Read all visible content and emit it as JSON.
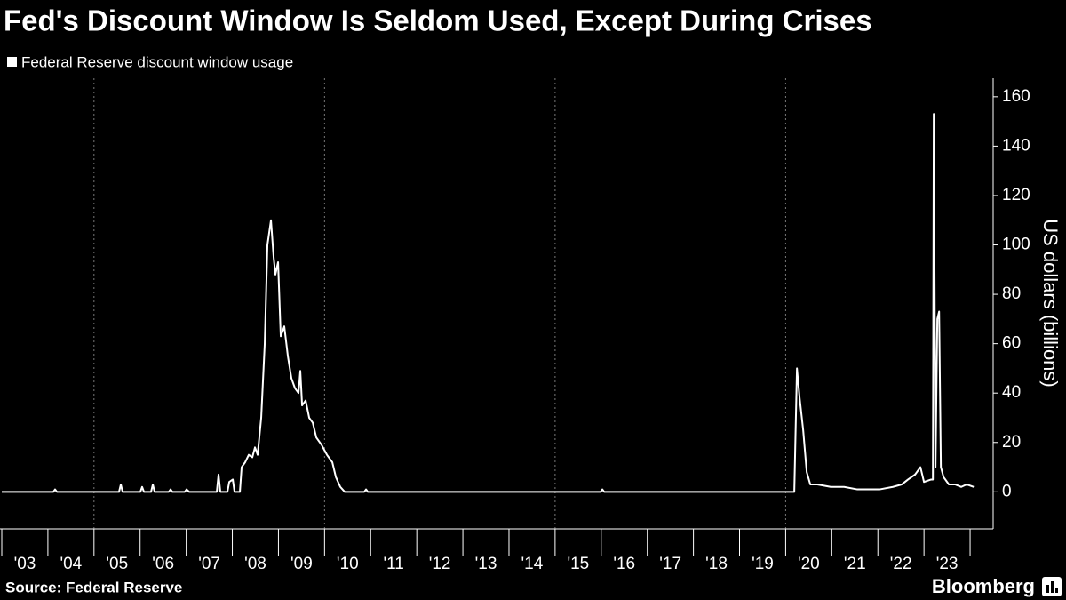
{
  "chart_data": {
    "type": "line",
    "title": "Fed's Discount Window Is Seldom Used, Except During Crises",
    "y_label": "US dollars (billions)",
    "source": "Source: Federal Reserve",
    "brand": "Bloomberg",
    "x": [
      2003.0,
      2004.118,
      2004.156,
      2004.195,
      2005.543,
      2005.582,
      2005.62,
      2006.006,
      2006.044,
      2006.083,
      2006.237,
      2006.276,
      2006.314,
      2006.622,
      2006.661,
      2006.699,
      2006.969,
      2007.008,
      2007.066,
      2007.663,
      2007.701,
      2007.74,
      2007.894,
      2007.933,
      2008.01,
      2008.048,
      2008.164,
      2008.202,
      2008.279,
      2008.356,
      2008.434,
      2008.491,
      2008.549,
      2008.626,
      2008.703,
      2008.761,
      2008.838,
      2008.896,
      2008.934,
      2008.992,
      2009.05,
      2009.127,
      2009.204,
      2009.281,
      2009.358,
      2009.435,
      2009.474,
      2009.513,
      2009.59,
      2009.667,
      2009.744,
      2009.821,
      2009.936,
      2010.052,
      2010.168,
      2010.245,
      2010.341,
      2010.437,
      2010.861,
      2010.9,
      2010.938,
      2015.987,
      2016.025,
      2016.064,
      2020.187,
      2020.245,
      2020.303,
      2020.38,
      2020.457,
      2020.534,
      2020.688,
      2020.977,
      2021.266,
      2021.555,
      2022.037,
      2022.326,
      2022.518,
      2022.653,
      2022.807,
      2022.923,
      2023.0,
      2023.154,
      2023.193,
      2023.212,
      2023.25,
      2023.289,
      2023.328,
      2023.366,
      2023.424,
      2023.539,
      2023.674,
      2023.809,
      2023.925,
      2024.079
    ],
    "series": [
      {
        "name": "Federal Reserve discount window usage",
        "color": "#ffffff",
        "values": [
          0,
          0,
          1,
          0,
          0,
          3,
          0,
          0,
          2,
          0,
          0,
          3,
          0,
          0,
          1,
          0,
          0,
          1,
          0,
          0,
          7,
          0,
          0,
          4,
          5,
          0,
          0,
          10,
          12,
          15,
          14,
          18,
          15,
          30,
          60,
          100,
          110,
          95,
          88,
          93,
          63,
          67,
          55,
          46,
          42,
          40,
          49,
          35,
          37,
          30,
          28,
          22,
          19,
          15,
          12,
          6,
          2,
          0,
          0,
          1,
          0,
          0,
          1,
          0,
          0,
          50,
          38,
          25,
          8,
          3,
          3,
          2,
          2,
          1,
          1,
          2,
          3,
          5,
          7,
          10,
          4,
          5,
          5,
          153,
          10,
          70,
          73,
          10,
          6,
          3,
          3,
          2,
          3,
          2
        ]
      }
    ],
    "xlim": [
      2003,
      2024.5
    ],
    "xticks": [
      {
        "value": 2003.5,
        "label": "'03"
      },
      {
        "value": 2004.5,
        "label": "'04"
      },
      {
        "value": 2005.5,
        "label": "'05"
      },
      {
        "value": 2006.5,
        "label": "'06"
      },
      {
        "value": 2007.5,
        "label": "'07"
      },
      {
        "value": 2008.5,
        "label": "'08"
      },
      {
        "value": 2009.5,
        "label": "'09"
      },
      {
        "value": 2010.5,
        "label": "'10"
      },
      {
        "value": 2011.5,
        "label": "'11"
      },
      {
        "value": 2012.5,
        "label": "'12"
      },
      {
        "value": 2013.5,
        "label": "'13"
      },
      {
        "value": 2014.5,
        "label": "'14"
      },
      {
        "value": 2015.5,
        "label": "'15"
      },
      {
        "value": 2016.5,
        "label": "'16"
      },
      {
        "value": 2017.5,
        "label": "'17"
      },
      {
        "value": 2018.5,
        "label": "'18"
      },
      {
        "value": 2019.5,
        "label": "'19"
      },
      {
        "value": 2020.5,
        "label": "'20"
      },
      {
        "value": 2021.5,
        "label": "'21"
      },
      {
        "value": 2022.5,
        "label": "'22"
      },
      {
        "value": 2023.5,
        "label": "'23"
      }
    ],
    "xgrid": [
      2005,
      2010,
      2015,
      2020
    ],
    "ylim": [
      -15,
      167.5
    ],
    "yticks": [
      0,
      20,
      40,
      60,
      80,
      100,
      120,
      140,
      160
    ],
    "grid": true
  }
}
